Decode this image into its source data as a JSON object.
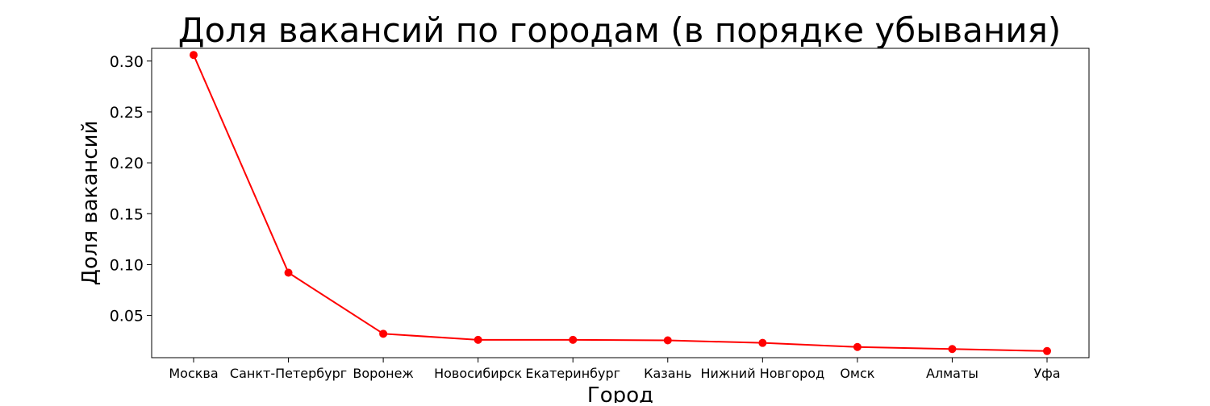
{
  "chart_data": {
    "type": "line",
    "title": "Доля вакансий по городам (в порядке убывания)",
    "xlabel": "Город",
    "ylabel": "Доля вакансий",
    "categories": [
      "Москва",
      "Санкт-Петербург",
      "Воронеж",
      "Новосибирск",
      "Екатеринбург",
      "Казань",
      "Нижний Новгород",
      "Омск",
      "Алматы",
      "Уфа"
    ],
    "series": [
      {
        "values": [
          0.306,
          0.092,
          0.032,
          0.026,
          0.026,
          0.0255,
          0.023,
          0.019,
          0.017,
          0.015
        ],
        "color": "#ff0000",
        "marker": "circle"
      }
    ],
    "ylim": [
      0.0085,
      0.3125
    ],
    "yticks": [
      0.05,
      0.1,
      0.15,
      0.2,
      0.25,
      0.3
    ],
    "ytick_labels": [
      "0.05",
      "0.10",
      "0.15",
      "0.20",
      "0.25",
      "0.30"
    ],
    "grid": false,
    "legend": false
  }
}
